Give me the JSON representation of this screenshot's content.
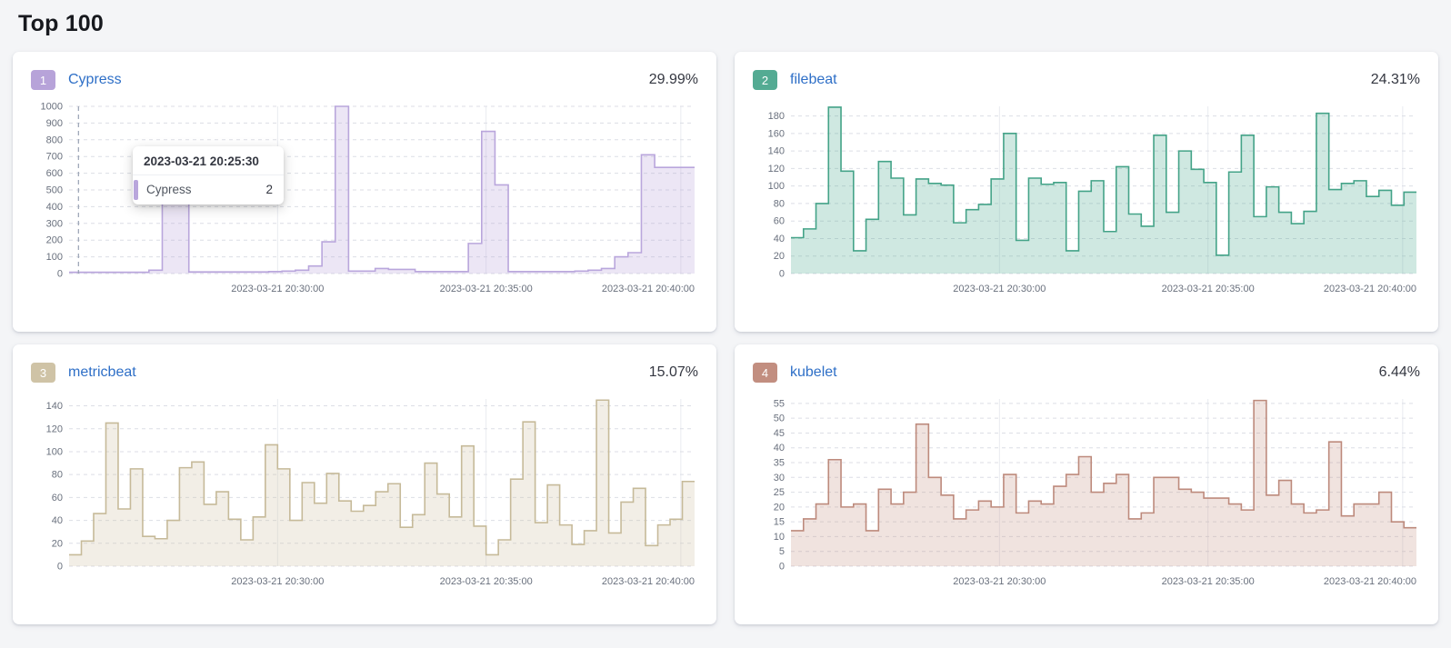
{
  "page": {
    "title": "Top 100",
    "background_color": "#f4f5f7"
  },
  "tooltip": {
    "timestamp": "2023-03-21 20:25:30",
    "series": "Cypress",
    "value": "2",
    "marker_color": "#b9a6dc"
  },
  "cards": [
    {
      "rank": "1",
      "name": "Cypress",
      "percent": "29.99%",
      "badge_color": "#b7a3d9"
    },
    {
      "rank": "2",
      "name": "filebeat",
      "percent": "24.31%",
      "badge_color": "#54ab93"
    },
    {
      "rank": "3",
      "name": "metricbeat",
      "percent": "15.07%",
      "badge_color": "#cfc3a6"
    },
    {
      "rank": "4",
      "name": "kubelet",
      "percent": "6.44%",
      "badge_color": "#c28e80"
    }
  ],
  "chart_data": [
    {
      "type": "area",
      "title": "Cypress",
      "stroke": "#b9a6dc",
      "fill": "rgba(185,166,220,0.28)",
      "ylim": [
        0,
        1000
      ],
      "render_max": 1000,
      "yticks": [
        0,
        100,
        200,
        300,
        400,
        500,
        600,
        700,
        800,
        900,
        1000
      ],
      "xlabels": [
        "2023-03-21 20:30:00",
        "2023-03-21 20:35:00",
        "2023-03-21 20:40:00"
      ],
      "values": [
        8,
        8,
        8,
        8,
        8,
        8,
        20,
        490,
        515,
        10,
        10,
        10,
        10,
        10,
        10,
        12,
        15,
        20,
        45,
        190,
        1000,
        15,
        15,
        30,
        25,
        25,
        12,
        12,
        12,
        12,
        180,
        850,
        530,
        12,
        12,
        12,
        12,
        12,
        15,
        20,
        30,
        100,
        125,
        710,
        635,
        635,
        635
      ],
      "crosshair_frac": 0.015,
      "has_tooltip": true
    },
    {
      "type": "area",
      "title": "filebeat",
      "stroke": "#44a388",
      "fill": "rgba(84,171,147,0.28)",
      "ylim": [
        0,
        180
      ],
      "render_max": 191,
      "yticks": [
        0,
        20,
        40,
        60,
        80,
        100,
        120,
        140,
        160,
        180
      ],
      "xlabels": [
        "2023-03-21 20:30:00",
        "2023-03-21 20:35:00",
        "2023-03-21 20:40:00"
      ],
      "values": [
        41,
        51,
        80,
        190,
        117,
        26,
        62,
        128,
        109,
        67,
        108,
        103,
        101,
        58,
        73,
        79,
        108,
        160,
        38,
        109,
        102,
        104,
        26,
        94,
        106,
        48,
        122,
        68,
        54,
        158,
        70,
        140,
        119,
        104,
        21,
        116,
        158,
        65,
        99,
        70,
        57,
        71,
        183,
        96,
        103,
        106,
        88,
        95,
        78,
        93
      ]
    },
    {
      "type": "area",
      "title": "metricbeat",
      "stroke": "#c6ba99",
      "fill": "rgba(207,195,166,0.28)",
      "ylim": [
        0,
        140
      ],
      "render_max": 146,
      "yticks": [
        0,
        20,
        40,
        60,
        80,
        100,
        120,
        140
      ],
      "xlabels": [
        "2023-03-21 20:30:00",
        "2023-03-21 20:35:00",
        "2023-03-21 20:40:00"
      ],
      "values": [
        10,
        22,
        46,
        125,
        50,
        85,
        26,
        24,
        40,
        86,
        91,
        54,
        65,
        41,
        23,
        43,
        106,
        85,
        40,
        73,
        55,
        81,
        57,
        48,
        53,
        65,
        72,
        34,
        45,
        90,
        63,
        43,
        105,
        35,
        10,
        23,
        76,
        126,
        38,
        71,
        36,
        19,
        31,
        145,
        29,
        56,
        68,
        18,
        36,
        41,
        74
      ]
    },
    {
      "type": "area",
      "title": "kubelet",
      "stroke": "#bd8a7c",
      "fill": "rgba(194,142,128,0.25)",
      "ylim": [
        0,
        55
      ],
      "render_max": 56.5,
      "yticks": [
        0,
        5,
        10,
        15,
        20,
        25,
        30,
        35,
        40,
        45,
        50,
        55
      ],
      "xlabels": [
        "2023-03-21 20:30:00",
        "2023-03-21 20:35:00",
        "2023-03-21 20:40:00"
      ],
      "values": [
        12,
        16,
        21,
        36,
        20,
        21,
        12,
        26,
        21,
        25,
        48,
        30,
        24,
        16,
        19,
        22,
        20,
        31,
        18,
        22,
        21,
        27,
        31,
        37,
        25,
        28,
        31,
        16,
        18,
        30,
        30,
        26,
        25,
        23,
        23,
        21,
        19,
        56,
        24,
        29,
        21,
        18,
        19,
        42,
        17,
        21,
        21,
        25,
        15,
        13
      ]
    }
  ]
}
